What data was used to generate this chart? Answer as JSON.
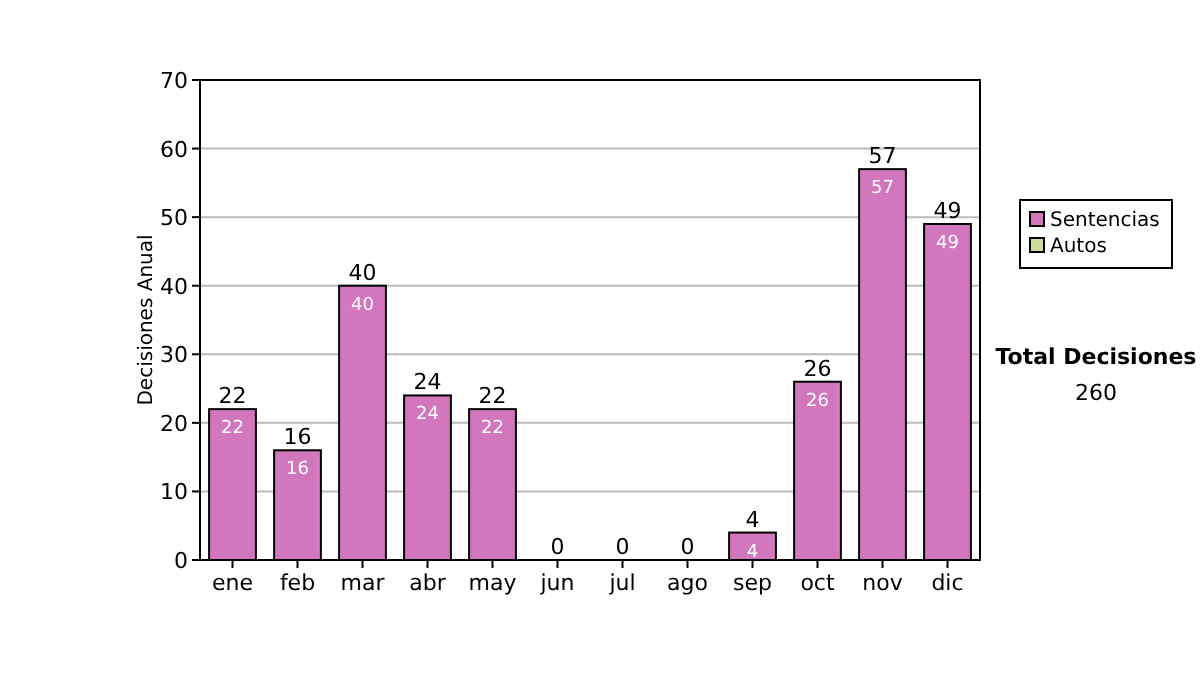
{
  "chart_data": {
    "type": "bar",
    "stacked": true,
    "ylabel": "Decisiones Anual",
    "categories": [
      "ene",
      "feb",
      "mar",
      "abr",
      "may",
      "jun",
      "jul",
      "ago",
      "sep",
      "oct",
      "nov",
      "dic"
    ],
    "series": [
      {
        "name": "Sentencias",
        "color": "#d277bd",
        "values": [
          22,
          16,
          40,
          24,
          22,
          0,
          0,
          0,
          4,
          26,
          57,
          49
        ],
        "value_labels": [
          "22",
          "16",
          "40",
          "24",
          "22",
          null,
          null,
          null,
          "4",
          "26",
          "57",
          "49"
        ]
      },
      {
        "name": "Autos",
        "color": "#ccdd99",
        "values": [
          0,
          0,
          0,
          0,
          0,
          0,
          0,
          0,
          0,
          0,
          0,
          0
        ],
        "value_labels": [
          null,
          null,
          null,
          null,
          null,
          null,
          null,
          null,
          null,
          null,
          null,
          null
        ]
      }
    ],
    "totals": [
      "22",
      "16",
      "40",
      "24",
      "22",
      "0",
      "0",
      "0",
      "4",
      "26",
      "57",
      "49"
    ],
    "ylim": [
      0,
      70
    ],
    "yticks": [
      0,
      10,
      20,
      30,
      40,
      50,
      60,
      70
    ],
    "grid": "y",
    "legend": "right",
    "annotations": [
      "Total Decisiones",
      "260"
    ]
  }
}
